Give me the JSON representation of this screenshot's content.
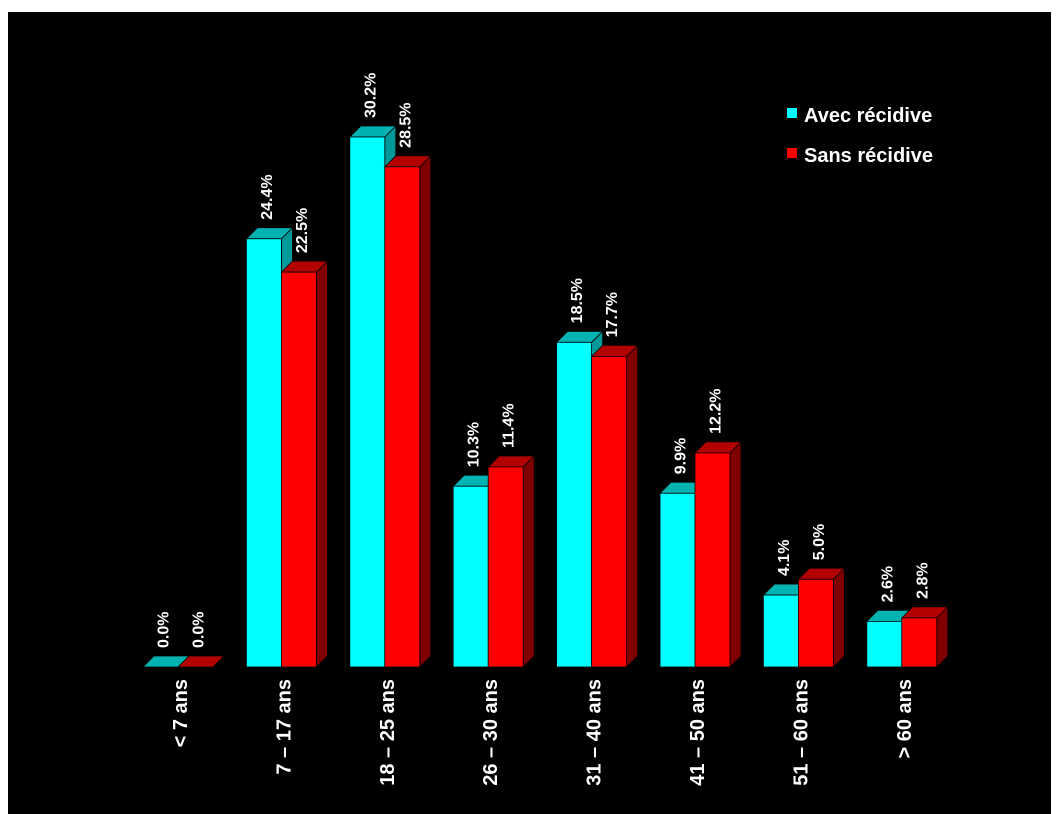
{
  "chart_data": {
    "type": "bar",
    "title": "",
    "xlabel": "",
    "ylabel": "",
    "ylim": [
      0,
      31
    ],
    "grid": false,
    "legend_position": "top-right",
    "categories": [
      "< 7 ans",
      "7 – 17 ans",
      "18 – 25 ans",
      "26 – 30 ans",
      "31 – 40 ans",
      "41 – 50 ans",
      "51 – 60 ans",
      "> 60 ans"
    ],
    "series": [
      {
        "name": "Avec récidive",
        "color": "#00ffff",
        "values": [
          0.0,
          24.4,
          30.2,
          10.3,
          18.5,
          9.9,
          4.1,
          2.6
        ],
        "labels": [
          "0.0%",
          "24.4%",
          "30.2%",
          "10.3%",
          "18.5%",
          "9.9%",
          "4.1%",
          "2.6%"
        ]
      },
      {
        "name": "Sans récidive",
        "color": "#ff0000",
        "values": [
          0.0,
          22.5,
          28.5,
          11.4,
          17.7,
          12.2,
          5.0,
          2.8
        ],
        "labels": [
          "0.0%",
          "22.5%",
          "28.5%",
          "11.4%",
          "17.7%",
          "12.2%",
          "5.0%",
          "2.8%"
        ]
      }
    ]
  }
}
